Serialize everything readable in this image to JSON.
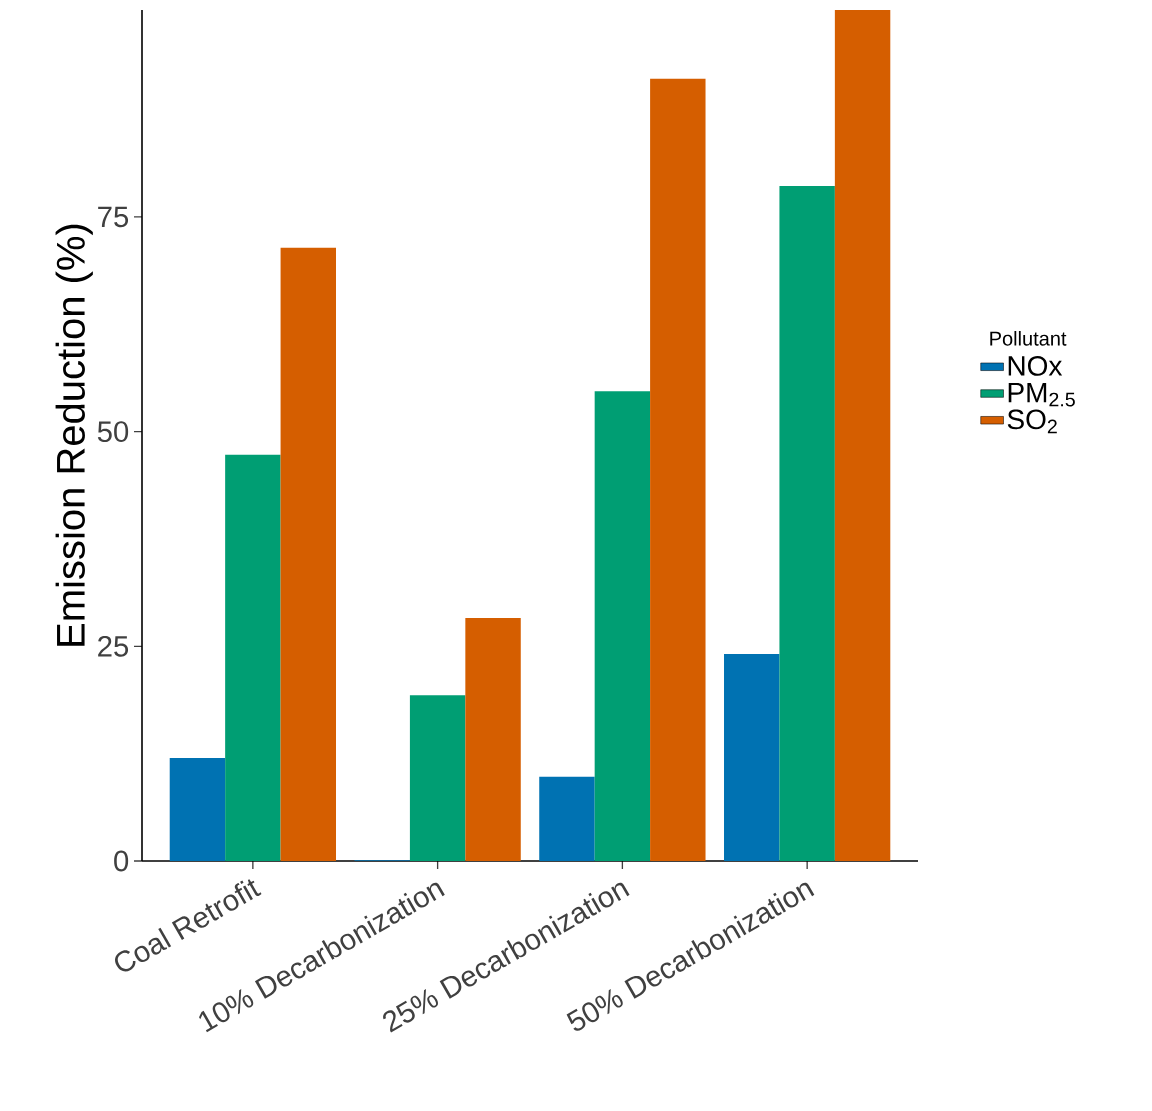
{
  "chart_data": {
    "type": "bar",
    "ylabel": "Emission Reduction (%)",
    "legend_title": "Pollutant",
    "legend": "right",
    "grid": false,
    "categories": [
      "Coal Retrofit",
      "10% Decarbonization",
      "25% Decarbonization",
      "50% Decarbonization"
    ],
    "ylim": [
      0,
      99.1
    ],
    "yticks": [
      0,
      25,
      50,
      75
    ],
    "series": [
      {
        "name": "NOx",
        "color": "#0072b2",
        "values": [
          12.0,
          0.1,
          9.8,
          24.1
        ]
      },
      {
        "name": "PM$_{2.5}$",
        "color": "#009e73",
        "values": [
          47.3,
          19.3,
          54.7,
          78.6
        ]
      },
      {
        "name": "SO$_{2}$",
        "color": "#d55e00",
        "values": [
          71.4,
          28.3,
          91.1,
          99.1
        ]
      }
    ]
  }
}
